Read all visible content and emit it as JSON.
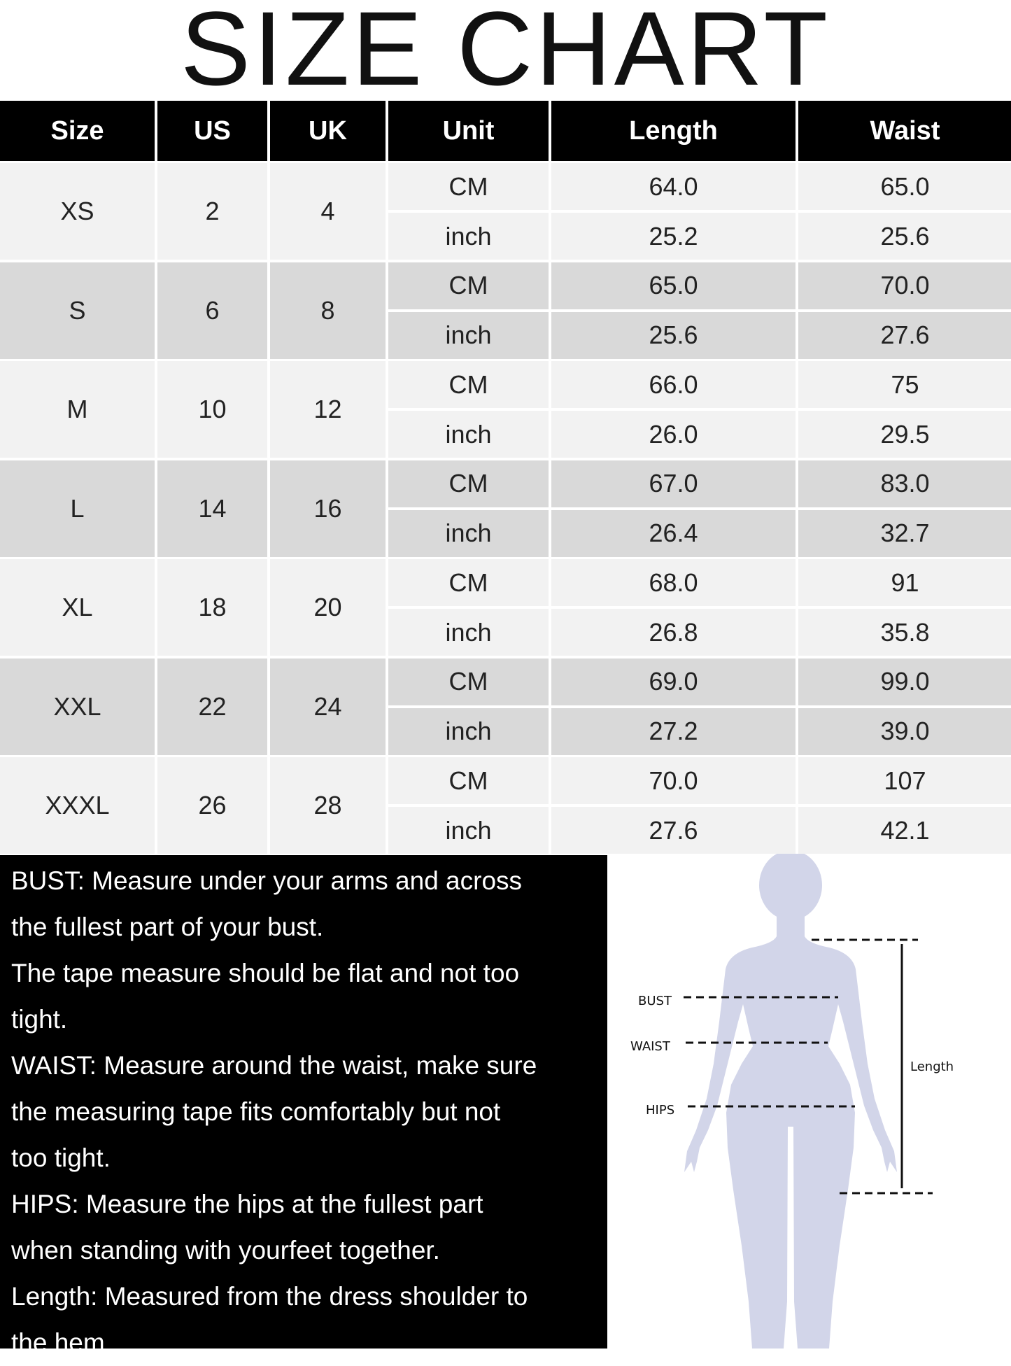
{
  "title": "SIZE CHART",
  "headers": [
    "Size",
    "US",
    "UK",
    "Unit",
    "Length",
    "Waist"
  ],
  "rows": [
    {
      "size": "XS",
      "us": "2",
      "uk": "4",
      "cm": {
        "unit": "CM",
        "length": "64.0",
        "waist": "65.0"
      },
      "inch": {
        "unit": "inch",
        "length": "25.2",
        "waist": "25.6"
      }
    },
    {
      "size": "S",
      "us": "6",
      "uk": "8",
      "cm": {
        "unit": "CM",
        "length": "65.0",
        "waist": "70.0"
      },
      "inch": {
        "unit": "inch",
        "length": "25.6",
        "waist": "27.6"
      }
    },
    {
      "size": "M",
      "us": "10",
      "uk": "12",
      "cm": {
        "unit": "CM",
        "length": "66.0",
        "waist": "75"
      },
      "inch": {
        "unit": "inch",
        "length": "26.0",
        "waist": "29.5"
      }
    },
    {
      "size": "L",
      "us": "14",
      "uk": "16",
      "cm": {
        "unit": "CM",
        "length": "67.0",
        "waist": "83.0"
      },
      "inch": {
        "unit": "inch",
        "length": "26.4",
        "waist": "32.7"
      }
    },
    {
      "size": "XL",
      "us": "18",
      "uk": "20",
      "cm": {
        "unit": "CM",
        "length": "68.0",
        "waist": "91"
      },
      "inch": {
        "unit": "inch",
        "length": "26.8",
        "waist": "35.8"
      }
    },
    {
      "size": "XXL",
      "us": "22",
      "uk": "24",
      "cm": {
        "unit": "CM",
        "length": "69.0",
        "waist": "99.0"
      },
      "inch": {
        "unit": "inch",
        "length": "27.2",
        "waist": "39.0"
      }
    },
    {
      "size": "XXXL",
      "us": "26",
      "uk": "28",
      "cm": {
        "unit": "CM",
        "length": "70.0",
        "waist": "107"
      },
      "inch": {
        "unit": "inch",
        "length": "27.6",
        "waist": "42.1"
      }
    }
  ],
  "notes": [
    "BUST: Measure under your arms and across",
    "the fullest part of your bust.",
    "The tape measure should be flat and not too",
    "tight.",
    "WAIST: Measure around the waist, make sure",
    "the measuring tape fits comfortably but not",
    "too tight.",
    "HIPS: Measure the hips at the fullest part",
    "when standing with yourfeet together.",
    "Length: Measured from the dress shoulder to",
    "the hem."
  ],
  "figure": {
    "bust": "BUST",
    "waist": "WAIST",
    "hips": "HIPS",
    "length": "Length",
    "silhouette_color": "#d2d5e9"
  },
  "colors": {
    "header_bg": "#000000",
    "row_light": "#f2f2f2",
    "row_dark": "#d9d9d9"
  }
}
